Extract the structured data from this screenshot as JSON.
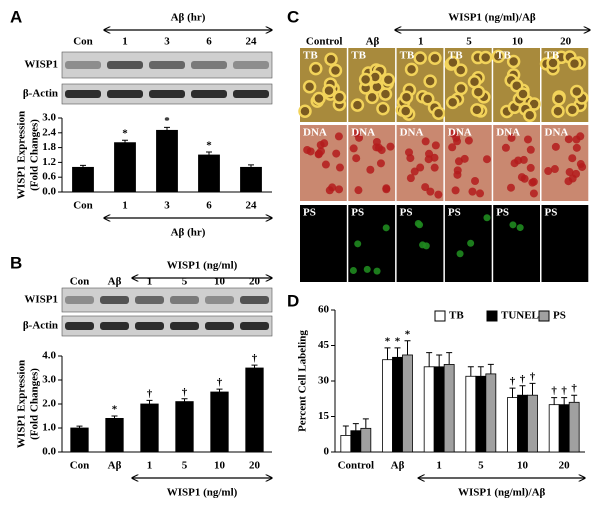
{
  "panel_labels": [
    "A",
    "B",
    "C",
    "D"
  ],
  "blot_a": {
    "header": "Aβ (hr)",
    "lanes": [
      "Con",
      "1",
      "3",
      "6",
      "24"
    ],
    "rows": [
      "WISP1",
      "β-Actin"
    ]
  },
  "blot_b": {
    "header": "WISP1 (ng/ml)",
    "lanes": [
      "Con",
      "Aβ",
      "1",
      "5",
      "10",
      "20"
    ],
    "rows": [
      "WISP1",
      "β-Actin"
    ]
  },
  "micrographs": {
    "header": "WISP1 (ng/ml)/Aβ",
    "columns": [
      "Control",
      "Aβ",
      "1",
      "5",
      "10",
      "20"
    ],
    "rows": [
      "TB",
      "DNA",
      "PS"
    ]
  },
  "chart_data": [
    {
      "type": "bar",
      "ylabel": [
        "WISP1 Expression",
        "(Fold Changes)"
      ],
      "xlabel": "Aβ (hr)",
      "categories": [
        "Con",
        "1",
        "3",
        "6",
        "24"
      ],
      "values": [
        1.0,
        2.0,
        2.5,
        1.5,
        1.0
      ],
      "errors": [
        0.08,
        0.1,
        0.12,
        0.12,
        0.1
      ],
      "significance": [
        null,
        "*",
        "*",
        "*",
        null
      ],
      "color": "#000000",
      "ylim": [
        0,
        3.0
      ],
      "yticks": [
        {
          "value": 0,
          "label": "0.0"
        },
        0.6,
        1.2,
        1.8,
        2.4,
        {
          "value": 3,
          "label": "3.0"
        }
      ]
    },
    {
      "type": "bar",
      "ylabel": [
        "WISP1 Expression",
        "(Fold Changes)"
      ],
      "xlabel": "WISP1 (ng/ml)",
      "categories": [
        "Con",
        "Aβ",
        "1",
        "5",
        "10",
        "20"
      ],
      "values": [
        1.0,
        1.4,
        2.0,
        2.1,
        2.5,
        3.5
      ],
      "errors": [
        0.08,
        0.1,
        0.15,
        0.12,
        0.12,
        0.12
      ],
      "significance": [
        null,
        "*",
        "†",
        "†",
        "†",
        "†"
      ],
      "color": "#000000",
      "ylim": [
        0,
        4.0
      ],
      "yticks": [
        {
          "value": 0,
          "label": "0.0"
        },
        {
          "value": 1,
          "label": "1.0"
        },
        {
          "value": 2,
          "label": "2.0"
        },
        {
          "value": 3,
          "label": "3.0"
        },
        {
          "value": 4,
          "label": "4.0"
        }
      ]
    },
    {
      "type": "bar",
      "ylabel": "Percent Cell Labeling",
      "xlabel": "WISP1 (ng/ml)/Aβ",
      "categories": [
        "Control",
        "Aβ",
        "1",
        "5",
        "10",
        "20"
      ],
      "series": [
        {
          "name": "TB",
          "color": "#ffffff",
          "values": [
            7,
            39,
            36,
            32,
            23,
            20
          ],
          "errors": [
            4,
            5,
            6,
            4,
            4,
            3
          ],
          "significance": [
            null,
            "*",
            null,
            null,
            "†",
            "†"
          ]
        },
        {
          "name": "TUNEL",
          "color": "#000000",
          "values": [
            9,
            40,
            36,
            32,
            24,
            20
          ],
          "errors": [
            3,
            4,
            5,
            4,
            4,
            3
          ],
          "significance": [
            null,
            "*",
            null,
            null,
            "†",
            "†"
          ]
        },
        {
          "name": "PS",
          "color": "#a0a0a0",
          "values": [
            10,
            41,
            37,
            33,
            24,
            21
          ],
          "errors": [
            4,
            6,
            5,
            4,
            5,
            3
          ],
          "significance": [
            null,
            "*",
            null,
            null,
            "†",
            "†"
          ]
        }
      ],
      "ylim": [
        0,
        60
      ],
      "yticks": [
        0,
        15,
        30,
        45,
        60
      ],
      "legend": "top-right"
    }
  ]
}
